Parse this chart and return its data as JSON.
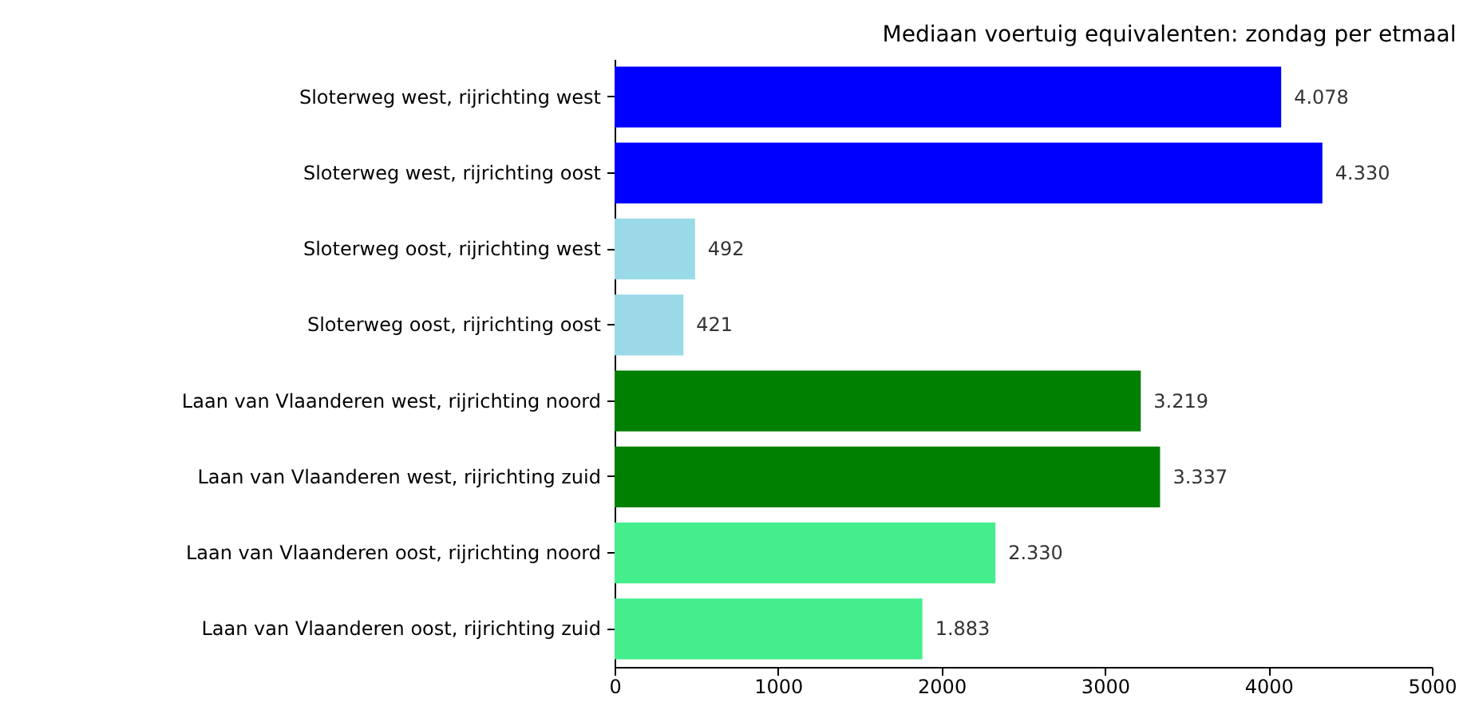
{
  "chart_data": {
    "type": "bar",
    "orientation": "horizontal",
    "title": "Mediaan voertuig equivalenten: zondag per etmaal",
    "categories": [
      "Sloterweg west, rijrichting west",
      "Sloterweg west, rijrichting oost",
      "Sloterweg oost, rijrichting west",
      "Sloterweg oost, rijrichting oost",
      "Laan van Vlaanderen west, rijrichting noord",
      "Laan van Vlaanderen west, rijrichting zuid",
      "Laan van Vlaanderen oost, rijrichting noord",
      "Laan van Vlaanderen oost, rijrichting zuid"
    ],
    "values": [
      4078,
      4330,
      492,
      421,
      3219,
      3337,
      2330,
      1883
    ],
    "value_labels": [
      "4.078",
      "4.330",
      "492",
      "421",
      "3.219",
      "3.337",
      "2.330",
      "1.883"
    ],
    "colors": [
      "#0000ff",
      "#0000ff",
      "#9ad9e8",
      "#9ad9e8",
      "#008000",
      "#008000",
      "#44ee8c",
      "#44ee8c"
    ],
    "xlim": [
      0,
      5000
    ],
    "xticks": [
      0,
      1000,
      2000,
      3000,
      4000,
      5000
    ],
    "grid": false
  }
}
